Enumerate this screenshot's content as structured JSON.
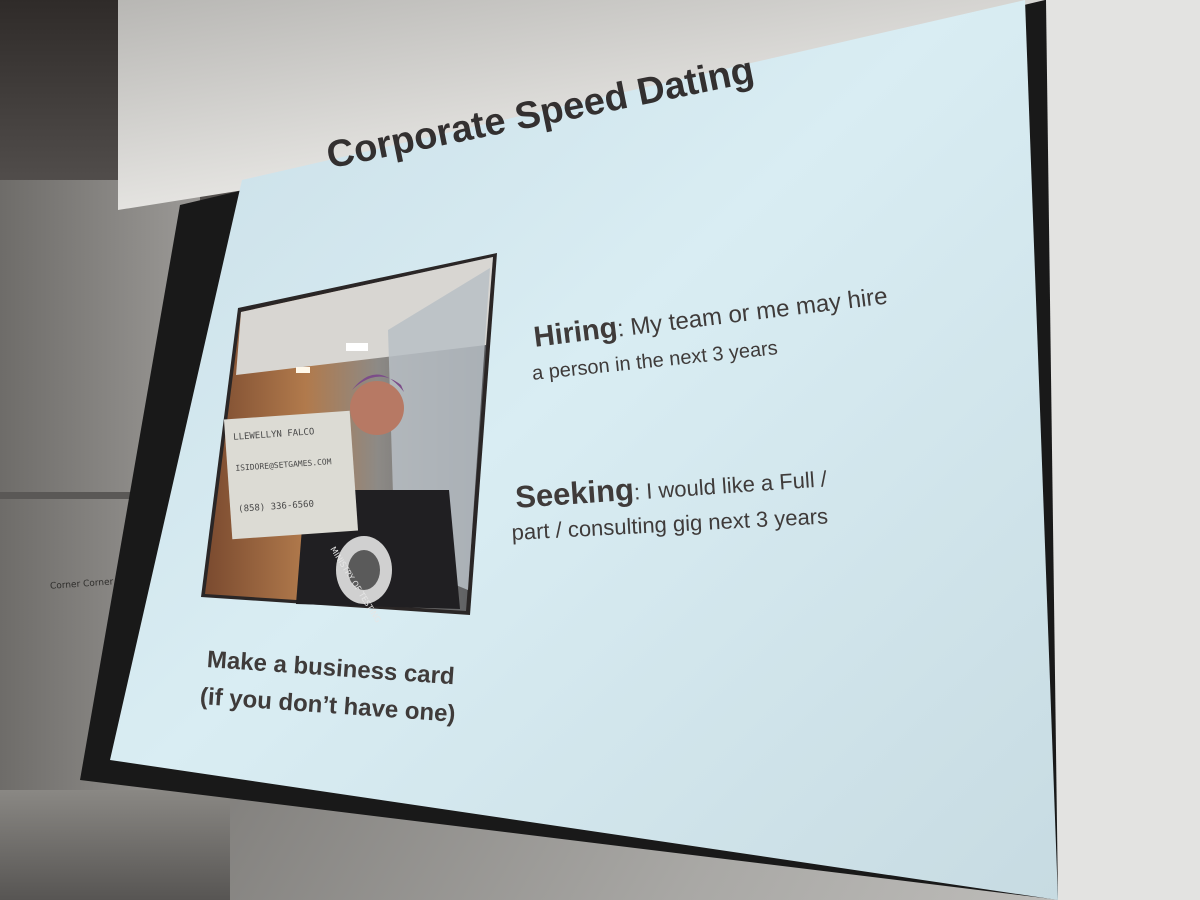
{
  "slide": {
    "title": "Corporate Speed Dating",
    "hiring_label": "Hiring",
    "hiring_text": ":  My team or me may hire",
    "hiring_text_2": "a person in the next 3 years",
    "seeking_label": "Seeking",
    "seeking_text": ": I would like a Full /",
    "seeking_text_2": "part / consulting gig next 3 years",
    "card_line_1": "Make a business card",
    "card_line_2": "(if you don’t have one)"
  },
  "photo": {
    "sign_name": "LLEWELLYN  FALCO",
    "sign_email": "ISIDORE@SETGAMES.COM",
    "sign_phone": "(858) 336-6560",
    "shirt_text": "MINISTRY OF TESTING"
  },
  "room": {
    "wall_note": "Corner Corner 5"
  },
  "colors": {
    "slide_bg": "#d7e9ef",
    "slide_text": "#3f3b3a"
  }
}
